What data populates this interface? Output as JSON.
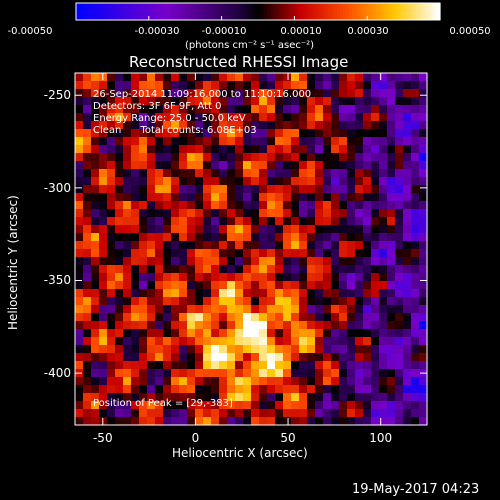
{
  "colorbar": {
    "ticks": [
      "-0.00050",
      "-0.00030",
      "-0.00010",
      "0.00010",
      "0.00030",
      "0.00050"
    ],
    "unit": "(photons cm⁻² s⁻¹ asec⁻²)"
  },
  "chart_data": {
    "type": "heatmap",
    "title": "Reconstructed RHESSI Image",
    "xlabel": "Heliocentric X (arcsec)",
    "ylabel": "Heliocentric Y (arcsec)",
    "xlim": [
      -65,
      125
    ],
    "ylim": [
      -428,
      -238
    ],
    "xticks": [
      "-50",
      "0",
      "50",
      "100"
    ],
    "yticks": [
      "-250",
      "-300",
      "-350",
      "-400"
    ],
    "xtick_values": [
      -50,
      0,
      50,
      100
    ],
    "ytick_values": [
      -250,
      -300,
      -350,
      -400
    ],
    "colorbar_range": [
      -0.0005,
      0.0005
    ],
    "annotations": [
      "26-Sep-2014 11:09:16.000 to 11:10:16.000",
      "Detectors: 3F 6F 9F, Att 0",
      "Energy Range: 25.0 - 50.0 keV",
      "Clean      Total counts: 6.08E+03"
    ],
    "peak_label": "Position of Peak = [29,-383]",
    "peak": [
      29,
      -383
    ]
  },
  "footer": {
    "date": "19-May-2017 04:23"
  }
}
